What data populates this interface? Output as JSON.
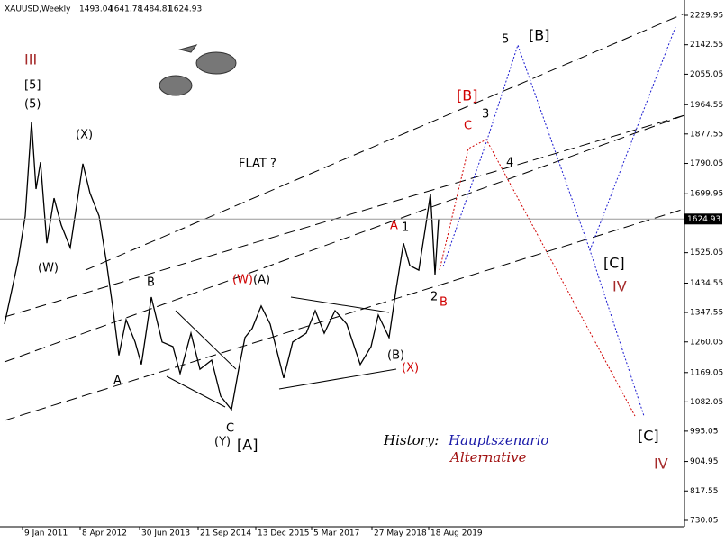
{
  "chart_data": {
    "type": "line",
    "title": "XAUUSD,Weekly",
    "ohlc": [
      1493.04,
      1641.78,
      1484.81,
      1624.93
    ],
    "color": "#000000",
    "x": [
      -20,
      -5,
      3,
      10,
      15,
      20,
      27,
      35,
      43,
      53,
      67,
      75,
      85,
      93,
      100,
      107,
      115,
      125,
      132,
      143,
      155,
      167,
      175,
      187,
      197,
      210,
      220,
      232,
      240,
      247,
      255,
      265,
      275,
      290,
      300,
      315,
      325,
      335,
      347,
      360,
      375,
      387,
      395,
      407,
      415,
      423,
      430,
      440,
      447,
      453,
      458,
      462
    ],
    "values": [
      1313,
      1500,
      1634,
      1914,
      1714,
      1794,
      1553,
      1687,
      1607,
      1540,
      1789,
      1701,
      1634,
      1500,
      1367,
      1220,
      1326,
      1260,
      1193,
      1393,
      1260,
      1246,
      1166,
      1286,
      1179,
      1206,
      1099,
      1059,
      1179,
      1273,
      1300,
      1367,
      1313,
      1153,
      1260,
      1286,
      1353,
      1286,
      1353,
      1313,
      1193,
      1246,
      1340,
      1273,
      1420,
      1553,
      1487,
      1473,
      1593,
      1700,
      1460,
      1625
    ],
    "xlim": [
      -22,
      735
    ],
    "ylim": [
      711.3,
      2275.4
    ],
    "xticks": [
      {
        "value": 0,
        "label": "9 Jan 2011"
      },
      {
        "value": 64,
        "label": "8 Apr 2012"
      },
      {
        "value": 130,
        "label": "30 Jun 2013"
      },
      {
        "value": 195,
        "label": "21 Sep 2014"
      },
      {
        "value": 259,
        "label": "13 Dec 2015"
      },
      {
        "value": 321,
        "label": "5 Mar 2017"
      },
      {
        "value": 388,
        "label": "27 May 2018"
      },
      {
        "value": 451,
        "label": "18 Aug 2019"
      }
    ],
    "yticks": [
      730.05,
      817.55,
      904.95,
      995.05,
      1082.05,
      1169.05,
      1260.05,
      1347.55,
      1434.55,
      1525.05,
      1699.95,
      1790.05,
      1877.55,
      1964.55,
      2055.05,
      2142.55,
      2229.95
    ],
    "annotations": [
      {
        "text": "III",
        "color": "#a52a2a"
      },
      {
        "text": "[5]",
        "color": "#000000"
      },
      {
        "text": "(5)",
        "color": "#000000"
      },
      {
        "text": "(X)",
        "color": "#000000"
      },
      {
        "text": "(W)",
        "color": "#000000"
      },
      {
        "text": "B",
        "color": "#000000"
      },
      {
        "text": "A",
        "color": "#000000"
      },
      {
        "text": "C",
        "color": "#000000"
      },
      {
        "text": "(Y)",
        "color": "#000000"
      },
      {
        "text": "[A]",
        "color": "#000000"
      },
      {
        "text": "(W)",
        "color": "#d00000"
      },
      {
        "text": "(A)",
        "color": "#000000"
      },
      {
        "text": "FLAT ?",
        "color": "#000000"
      },
      {
        "text": "(B)",
        "color": "#000000"
      },
      {
        "text": "(X)",
        "color": "#d00000"
      },
      {
        "text": "A",
        "color": "#d00000"
      },
      {
        "text": "1",
        "color": "#000000"
      },
      {
        "text": "2",
        "color": "#000000"
      },
      {
        "text": "B",
        "color": "#d00000"
      },
      {
        "text": "[B]",
        "color": "#d00000"
      },
      {
        "text": "3",
        "color": "#000000"
      },
      {
        "text": "C",
        "color": "#d00000"
      },
      {
        "text": "4",
        "color": "#000000"
      },
      {
        "text": "5",
        "color": "#000000"
      },
      {
        "text": "[B]",
        "color": "#000000"
      },
      {
        "text": "[C]",
        "color": "#000000"
      },
      {
        "text": "IV",
        "color": "#a52a2a"
      },
      {
        "text": "[C]",
        "color": "#000000"
      },
      {
        "text": "IV",
        "color": "#a52a2a"
      }
    ],
    "legend_title": "History:",
    "scenarios": [
      {
        "name": "Hauptszenario",
        "color": "#1a1aa8"
      },
      {
        "name": "Alternative",
        "color": "#a01010"
      }
    ]
  }
}
